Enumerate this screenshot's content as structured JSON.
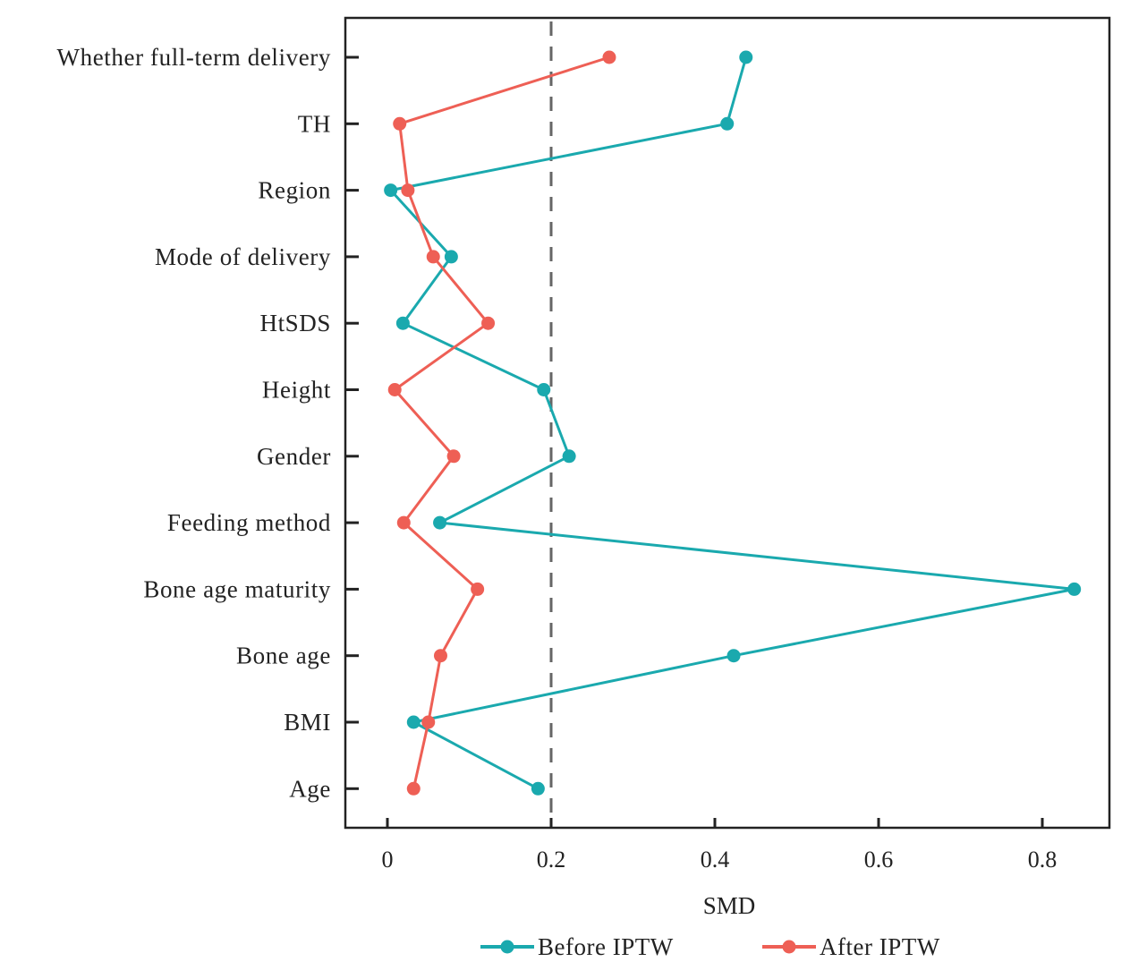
{
  "chart_data": {
    "type": "line",
    "title": "",
    "xlabel": "SMD",
    "ylabel": "",
    "xlim": [
      -0.05,
      0.88
    ],
    "xticks": [
      0,
      0.2,
      0.4,
      0.6,
      0.8
    ],
    "xtick_labels": [
      "0",
      "0.2",
      "0.4",
      "0.6",
      "0.8"
    ],
    "grid": false,
    "reference_line": {
      "x": 0.2,
      "style": "dashed",
      "color": "#666666"
    },
    "categories": [
      "Age",
      "BMI",
      "Bone age",
      "Bone age maturity",
      "Feeding method",
      "Gender",
      "Height",
      "HtSDS",
      "Mode of delivery",
      "Region",
      "TH",
      "Whether full-term delivery"
    ],
    "series": [
      {
        "name": "Before IPTW",
        "color": "#1aa9ae",
        "values": [
          0.184,
          0.032,
          0.423,
          0.839,
          0.064,
          0.222,
          0.191,
          0.019,
          0.078,
          0.004,
          0.415,
          0.438
        ]
      },
      {
        "name": "After IPTW",
        "color": "#ee5f55",
        "values": [
          0.032,
          0.05,
          0.065,
          0.11,
          0.02,
          0.081,
          0.009,
          0.123,
          0.056,
          0.025,
          0.015,
          0.271
        ]
      }
    ],
    "legend": {
      "placement": "bottom-center",
      "entries": [
        "Before IPTW",
        "After IPTW"
      ]
    }
  }
}
